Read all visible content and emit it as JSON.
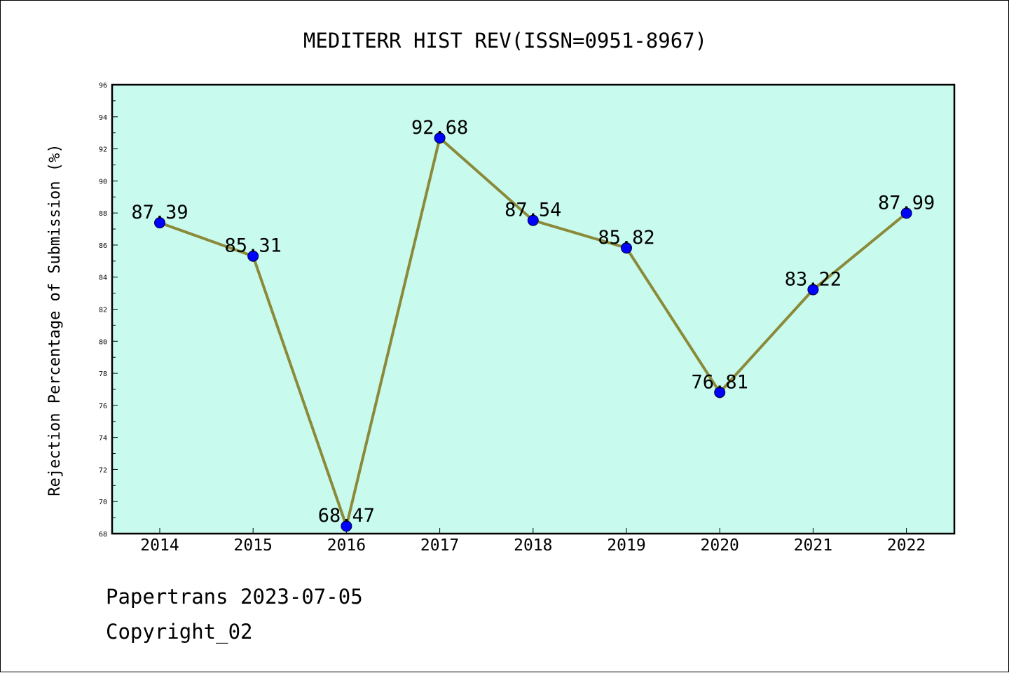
{
  "chart_data": {
    "type": "line",
    "title": "MEDITERR HIST REV(ISSN=0951-8967)",
    "ylabel": "Rejection Percentage of Submission (%)",
    "xlabel": "",
    "categories": [
      "2014",
      "2015",
      "2016",
      "2017",
      "2018",
      "2019",
      "2020",
      "2021",
      "2022"
    ],
    "values": [
      87.39,
      85.31,
      68.47,
      92.68,
      87.54,
      85.82,
      76.81,
      83.22,
      87.99
    ],
    "data_labels": [
      "87.39",
      "85.31",
      "68.47",
      "92.68",
      "87.54",
      "85.82",
      "76.81",
      "83.22",
      "87.99"
    ],
    "ylim": [
      68,
      96
    ],
    "yticks": [
      "68",
      "70",
      "72",
      "74",
      "76",
      "78",
      "80",
      "82",
      "84",
      "86",
      "88",
      "90",
      "92",
      "94",
      "96"
    ],
    "grid": false,
    "colors": {
      "plot_background": "#c8fbee",
      "line": "#8b8a3a",
      "marker": "#0000ff"
    }
  },
  "footer": {
    "line1": "Papertrans 2023-07-05",
    "line2": "Copyright_02"
  }
}
